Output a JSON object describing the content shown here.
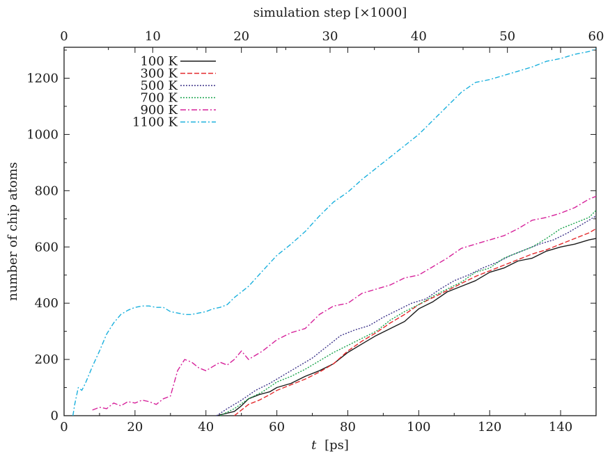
{
  "chart_data": {
    "type": "line",
    "xlabel_italic": "t",
    "xlabel_unit": "[ps]",
    "ylabel": "number of chip atoms",
    "x2label": "simulation step [×1000]",
    "xlim": [
      0,
      150
    ],
    "ylim": [
      0,
      1310
    ],
    "x2lim": [
      0,
      60
    ],
    "xticks": [
      "0",
      "20",
      "40",
      "60",
      "80",
      "100",
      "120",
      "140"
    ],
    "yticks": [
      "0",
      "200",
      "400",
      "600",
      "800",
      "1000",
      "1200"
    ],
    "x2ticks": [
      "0",
      "10",
      "20",
      "30",
      "40",
      "50",
      "60"
    ],
    "legend_position": "top-left",
    "series": [
      {
        "name": "100 K",
        "color": "#1a1a1a",
        "dash": "",
        "x": [
          43,
          48,
          50,
          52,
          55,
          58,
          60,
          64,
          68,
          72,
          76,
          80,
          84,
          88,
          92,
          96,
          100,
          104,
          108,
          112,
          116,
          120,
          124,
          128,
          132,
          136,
          140,
          144,
          148,
          150
        ],
        "y": [
          0,
          15,
          35,
          60,
          75,
          85,
          100,
          115,
          140,
          160,
          185,
          225,
          255,
          285,
          310,
          335,
          380,
          405,
          440,
          460,
          480,
          510,
          525,
          550,
          560,
          585,
          600,
          610,
          625,
          630
        ]
      },
      {
        "name": "300 K",
        "color": "#e4282a",
        "dash": "7,3",
        "x": [
          48,
          50,
          52,
          55,
          58,
          60,
          64,
          68,
          72,
          76,
          80,
          84,
          88,
          92,
          96,
          100,
          104,
          108,
          112,
          116,
          120,
          124,
          128,
          132,
          136,
          140,
          144,
          148,
          150
        ],
        "y": [
          0,
          20,
          40,
          55,
          75,
          90,
          110,
          130,
          155,
          185,
          230,
          265,
          295,
          330,
          360,
          395,
          420,
          445,
          470,
          495,
          515,
          535,
          555,
          575,
          590,
          610,
          630,
          650,
          665
        ]
      },
      {
        "name": "500 K",
        "color": "#3b3289",
        "dash": "2,2",
        "x": [
          43,
          46,
          50,
          54,
          58,
          62,
          66,
          70,
          74,
          78,
          82,
          86,
          90,
          94,
          98,
          102,
          106,
          110,
          114,
          118,
          122,
          126,
          130,
          134,
          138,
          142,
          146,
          150
        ],
        "y": [
          0,
          25,
          55,
          90,
          115,
          145,
          175,
          205,
          245,
          285,
          305,
          320,
          350,
          375,
          400,
          415,
          450,
          480,
          500,
          525,
          545,
          570,
          590,
          610,
          625,
          650,
          680,
          710
        ]
      },
      {
        "name": "700 K",
        "color": "#17a34a",
        "dash": "2,2",
        "x": [
          44,
          48,
          52,
          56,
          60,
          64,
          68,
          72,
          76,
          80,
          84,
          88,
          92,
          96,
          100,
          104,
          108,
          112,
          116,
          120,
          124,
          128,
          132,
          136,
          140,
          144,
          148,
          150
        ],
        "y": [
          0,
          25,
          60,
          85,
          120,
          140,
          165,
          195,
          225,
          250,
          275,
          300,
          340,
          370,
          395,
          425,
          450,
          475,
          510,
          525,
          560,
          580,
          600,
          630,
          665,
          685,
          705,
          730
        ]
      },
      {
        "name": "900 K",
        "color": "#d6219a",
        "dash": "8,3,2,3",
        "x": [
          8,
          10,
          12,
          14,
          16,
          18,
          20,
          22,
          24,
          26,
          28,
          30,
          32,
          34,
          36,
          38,
          40,
          42,
          44,
          46,
          48,
          50,
          52,
          56,
          60,
          64,
          68,
          72,
          76,
          80,
          84,
          88,
          92,
          96,
          100,
          104,
          108,
          112,
          116,
          120,
          124,
          128,
          132,
          136,
          140,
          144,
          148,
          150
        ],
        "y": [
          20,
          30,
          25,
          45,
          35,
          50,
          45,
          55,
          50,
          40,
          60,
          70,
          160,
          200,
          190,
          170,
          160,
          175,
          190,
          180,
          200,
          230,
          200,
          230,
          270,
          295,
          310,
          360,
          390,
          400,
          435,
          450,
          465,
          490,
          500,
          530,
          560,
          595,
          610,
          625,
          640,
          665,
          695,
          705,
          720,
          740,
          770,
          780
        ]
      },
      {
        "name": "1100 K",
        "color": "#1ab0dd",
        "dash": "7,3,2,3",
        "x": [
          2.5,
          3,
          4,
          5,
          6,
          8,
          10,
          12,
          14,
          16,
          18,
          20,
          22,
          24,
          26,
          28,
          30,
          32,
          34,
          36,
          38,
          40,
          42,
          44,
          46,
          48,
          52,
          56,
          60,
          64,
          68,
          72,
          76,
          80,
          84,
          88,
          92,
          96,
          100,
          104,
          108,
          112,
          116,
          120,
          124,
          128,
          132,
          136,
          140,
          144,
          148,
          150
        ],
        "y": [
          0,
          40,
          100,
          90,
          115,
          175,
          230,
          290,
          330,
          360,
          375,
          385,
          390,
          390,
          385,
          385,
          370,
          365,
          360,
          360,
          365,
          370,
          380,
          385,
          395,
          420,
          460,
          515,
          570,
          610,
          655,
          710,
          760,
          795,
          840,
          880,
          920,
          960,
          1000,
          1050,
          1100,
          1150,
          1185,
          1195,
          1210,
          1225,
          1240,
          1260,
          1270,
          1285,
          1295,
          1305
        ]
      }
    ]
  }
}
